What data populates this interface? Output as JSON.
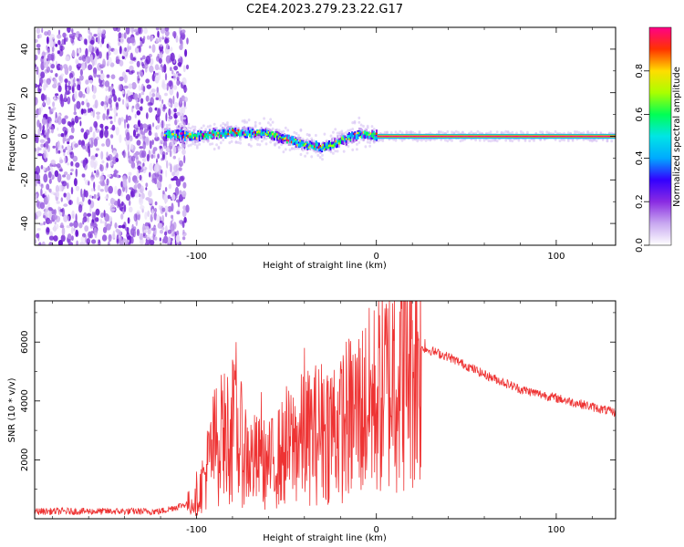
{
  "figure": {
    "title": "C2E4.2023.279.23.22.G17"
  },
  "colors": {
    "snr_line": "#ee3333",
    "axis": "#000000",
    "background": "#ffffff"
  },
  "chart_data": [
    {
      "type": "heatmap",
      "title": "C2E4.2023.279.23.22.G17",
      "xlabel": "Height of straight line (km)",
      "ylabel": "Frequency (Hz)",
      "xlim": [
        -190,
        133
      ],
      "ylim": [
        -50,
        50
      ],
      "x_ticks": [
        -100,
        0,
        100
      ],
      "y_ticks": [
        -40,
        -20,
        0,
        20,
        40
      ],
      "colorbar": {
        "label": "Normalized spectral amplitude",
        "range": [
          0,
          1
        ],
        "ticks": [
          "0.0",
          "0.2",
          "0.4",
          "0.6",
          "0.8"
        ],
        "colormap": [
          "#ffffff",
          "#c8a8f0",
          "#8a2be2",
          "#3300ff",
          "#00aaff",
          "#00e5e5",
          "#00ff55",
          "#aaff00",
          "#ffdd00",
          "#ff3300",
          "#ff0088"
        ]
      },
      "trace": {
        "noise_region_x": [
          -190,
          -110
        ],
        "points": [
          [
            -120,
            1
          ],
          [
            -100,
            0
          ],
          [
            -80,
            2
          ],
          [
            -60,
            1
          ],
          [
            -40,
            -4
          ],
          [
            -30,
            -5
          ],
          [
            -20,
            -2
          ],
          [
            -10,
            1
          ],
          [
            0,
            0
          ],
          [
            10,
            0
          ],
          [
            50,
            0
          ],
          [
            100,
            0
          ],
          [
            133,
            0
          ]
        ]
      }
    },
    {
      "type": "line",
      "xlabel": "Height of straight line (km)",
      "ylabel": "SNR (10 * v/v)",
      "xlim": [
        -190,
        133
      ],
      "ylim": [
        0,
        7400
      ],
      "x_ticks": [
        -100,
        0,
        100
      ],
      "y_ticks": [
        2000,
        4000,
        6000
      ],
      "series": [
        {
          "envelope": [
            [
              -190,
              250
            ],
            [
              -120,
              250
            ],
            [
              -100,
              600
            ],
            [
              -90,
              2500
            ],
            [
              -80,
              3000
            ],
            [
              -70,
              2000
            ],
            [
              -60,
              1800
            ],
            [
              -45,
              2600
            ],
            [
              -30,
              3000
            ],
            [
              -15,
              3400
            ],
            [
              0,
              4100
            ],
            [
              10,
              4800
            ],
            [
              20,
              5500
            ],
            [
              26,
              5800
            ],
            [
              40,
              5500
            ],
            [
              60,
              4900
            ],
            [
              80,
              4400
            ],
            [
              100,
              4100
            ],
            [
              120,
              3800
            ],
            [
              133,
              3600
            ]
          ],
          "peaks": [
            [
              -100,
              1600
            ],
            [
              -86,
              4200
            ],
            [
              -80,
              5400
            ],
            [
              -78,
              6000
            ],
            [
              -64,
              4300
            ],
            [
              -50,
              4500
            ],
            [
              -40,
              5800
            ],
            [
              -30,
              4600
            ],
            [
              -20,
              5100
            ],
            [
              -10,
              5000
            ],
            [
              5,
              5900
            ],
            [
              10,
              7400
            ],
            [
              18,
              5600
            ],
            [
              27,
              6100
            ]
          ]
        }
      ]
    }
  ]
}
